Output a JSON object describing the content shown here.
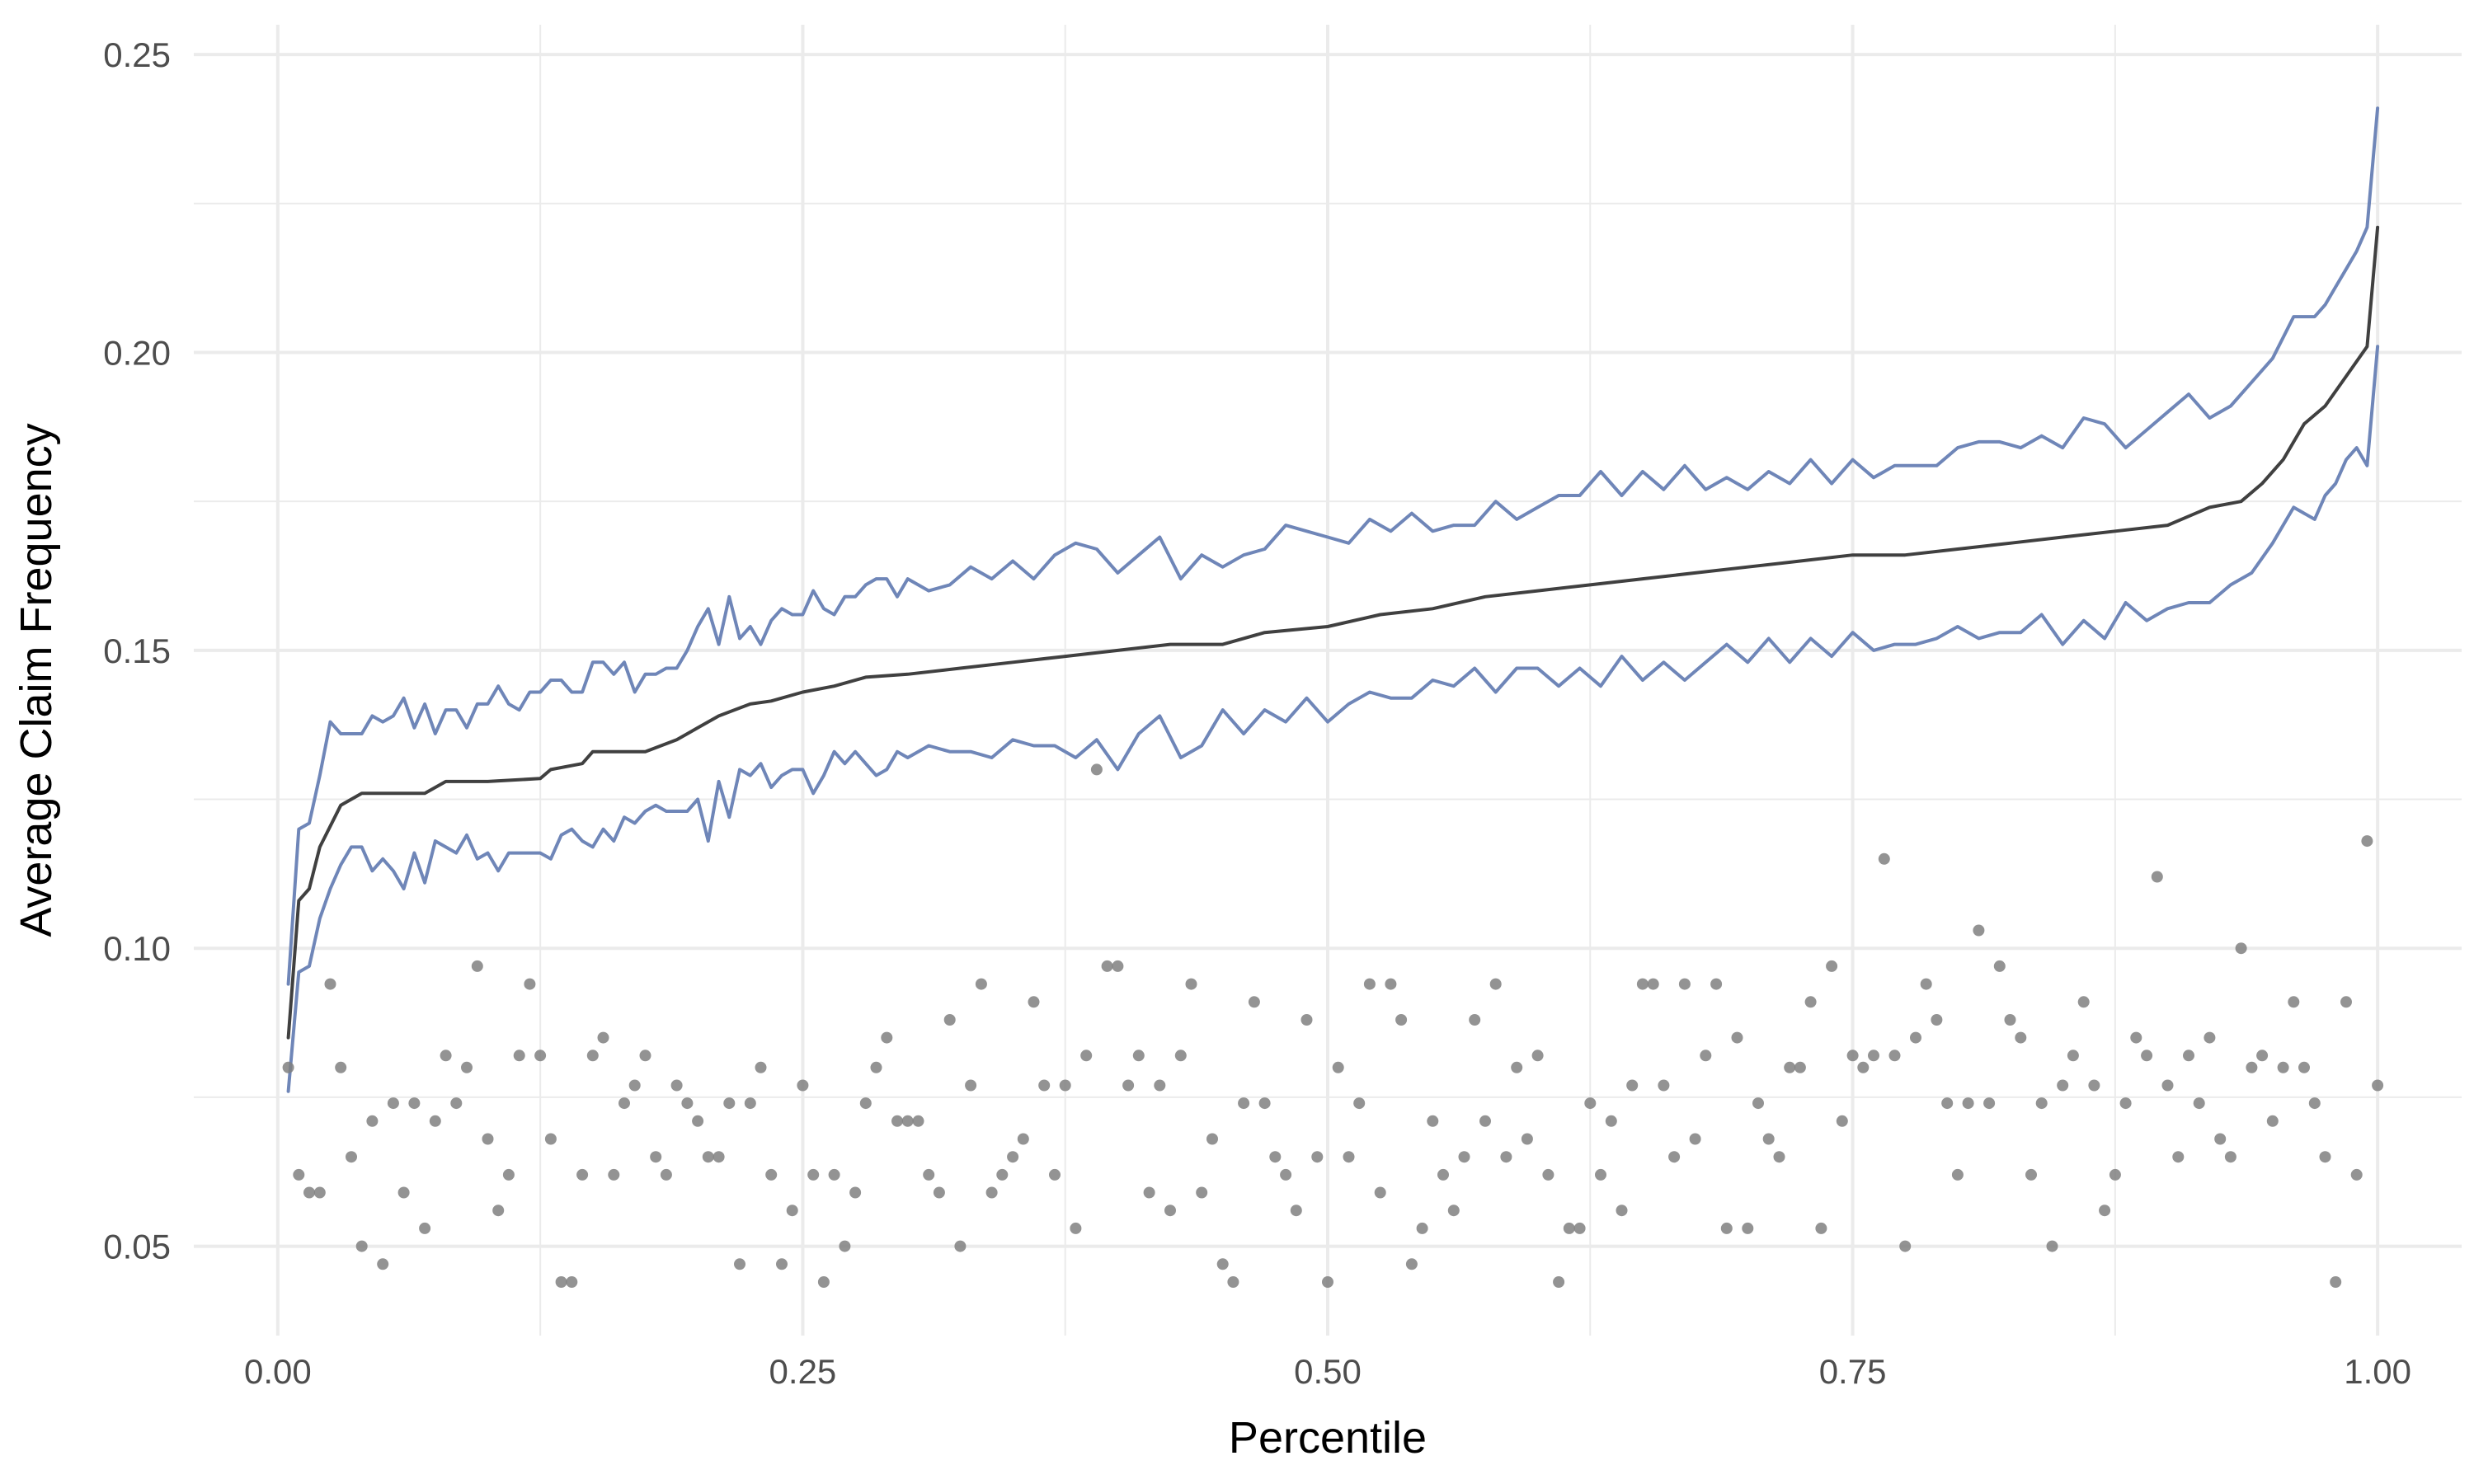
{
  "chart_data": {
    "type": "line",
    "title": "",
    "xlabel": "Percentile",
    "ylabel": "Average Claim Frequency",
    "xlim": [
      -0.04,
      1.04
    ],
    "ylim": [
      0.035,
      0.255
    ],
    "x_ticks": [
      0.0,
      0.25,
      0.5,
      0.75,
      1.0
    ],
    "x_tick_labels": [
      "0.00",
      "0.25",
      "0.50",
      "0.75",
      "1.00"
    ],
    "y_ticks": [
      0.05,
      0.1,
      0.15,
      0.2,
      0.25
    ],
    "y_tick_labels": [
      "0.05",
      "0.10",
      "0.15",
      "0.20",
      "0.25"
    ],
    "grid": true,
    "legend": "none",
    "colors": {
      "prediction": "#404040",
      "bounds": "#6f86b8",
      "points": "#808080",
      "grid": "#ebebeb"
    },
    "series": [
      {
        "kind": "line",
        "role": "prediction",
        "x": [
          0.005,
          0.01,
          0.015,
          0.02,
          0.03,
          0.04,
          0.05,
          0.07,
          0.08,
          0.1,
          0.125,
          0.13,
          0.145,
          0.15,
          0.175,
          0.19,
          0.2,
          0.21,
          0.225,
          0.235,
          0.25,
          0.265,
          0.28,
          0.3,
          0.325,
          0.35,
          0.375,
          0.4,
          0.425,
          0.45,
          0.47,
          0.5,
          0.525,
          0.55,
          0.575,
          0.6,
          0.625,
          0.65,
          0.675,
          0.7,
          0.725,
          0.75,
          0.775,
          0.8,
          0.825,
          0.85,
          0.875,
          0.9,
          0.92,
          0.935,
          0.945,
          0.955,
          0.965,
          0.975,
          0.985,
          0.995,
          1.0
        ],
        "y": [
          0.085,
          0.108,
          0.11,
          0.117,
          0.124,
          0.126,
          0.126,
          0.126,
          0.128,
          0.128,
          0.1285,
          0.13,
          0.131,
          0.133,
          0.133,
          0.135,
          0.137,
          0.139,
          0.141,
          0.1415,
          0.143,
          0.144,
          0.1455,
          0.146,
          0.147,
          0.148,
          0.149,
          0.15,
          0.151,
          0.151,
          0.153,
          0.154,
          0.156,
          0.157,
          0.159,
          0.16,
          0.161,
          0.162,
          0.163,
          0.164,
          0.165,
          0.166,
          0.166,
          0.167,
          0.168,
          0.169,
          0.17,
          0.171,
          0.174,
          0.175,
          0.178,
          0.182,
          0.188,
          0.191,
          0.196,
          0.201,
          0.221
        ]
      },
      {
        "kind": "line",
        "role": "upper-bound",
        "x": [
          0.005,
          0.01,
          0.015,
          0.02,
          0.025,
          0.03,
          0.035,
          0.04,
          0.045,
          0.05,
          0.055,
          0.06,
          0.065,
          0.07,
          0.075,
          0.08,
          0.085,
          0.09,
          0.095,
          0.1,
          0.105,
          0.11,
          0.115,
          0.12,
          0.125,
          0.13,
          0.135,
          0.14,
          0.145,
          0.15,
          0.155,
          0.16,
          0.165,
          0.17,
          0.175,
          0.18,
          0.185,
          0.19,
          0.195,
          0.2,
          0.205,
          0.21,
          0.215,
          0.22,
          0.225,
          0.23,
          0.235,
          0.24,
          0.245,
          0.25,
          0.255,
          0.26,
          0.265,
          0.27,
          0.275,
          0.28,
          0.285,
          0.29,
          0.295,
          0.3,
          0.31,
          0.32,
          0.33,
          0.34,
          0.35,
          0.36,
          0.37,
          0.38,
          0.39,
          0.4,
          0.41,
          0.42,
          0.43,
          0.44,
          0.45,
          0.46,
          0.47,
          0.48,
          0.49,
          0.5,
          0.51,
          0.52,
          0.53,
          0.54,
          0.55,
          0.56,
          0.57,
          0.58,
          0.59,
          0.6,
          0.61,
          0.62,
          0.63,
          0.64,
          0.65,
          0.66,
          0.67,
          0.68,
          0.69,
          0.7,
          0.71,
          0.72,
          0.73,
          0.74,
          0.75,
          0.76,
          0.77,
          0.78,
          0.79,
          0.8,
          0.81,
          0.82,
          0.83,
          0.84,
          0.85,
          0.86,
          0.87,
          0.88,
          0.89,
          0.9,
          0.91,
          0.92,
          0.93,
          0.94,
          0.95,
          0.96,
          0.97,
          0.975,
          0.98,
          0.985,
          0.99,
          0.995,
          1.0
        ],
        "y": [
          0.094,
          0.12,
          0.121,
          0.129,
          0.138,
          0.136,
          0.136,
          0.136,
          0.139,
          0.138,
          0.139,
          0.142,
          0.137,
          0.141,
          0.136,
          0.14,
          0.14,
          0.137,
          0.141,
          0.141,
          0.144,
          0.141,
          0.14,
          0.143,
          0.143,
          0.145,
          0.145,
          0.143,
          0.143,
          0.148,
          0.148,
          0.146,
          0.148,
          0.143,
          0.146,
          0.146,
          0.147,
          0.147,
          0.15,
          0.154,
          0.157,
          0.151,
          0.159,
          0.152,
          0.154,
          0.151,
          0.155,
          0.157,
          0.156,
          0.156,
          0.16,
          0.157,
          0.156,
          0.159,
          0.159,
          0.161,
          0.162,
          0.162,
          0.159,
          0.162,
          0.16,
          0.161,
          0.164,
          0.162,
          0.165,
          0.162,
          0.166,
          0.168,
          0.167,
          0.163,
          0.166,
          0.169,
          0.162,
          0.166,
          0.164,
          0.166,
          0.167,
          0.171,
          0.17,
          0.169,
          0.168,
          0.172,
          0.17,
          0.173,
          0.17,
          0.171,
          0.171,
          0.175,
          0.172,
          0.174,
          0.176,
          0.176,
          0.18,
          0.176,
          0.18,
          0.177,
          0.181,
          0.177,
          0.179,
          0.177,
          0.18,
          0.178,
          0.182,
          0.178,
          0.182,
          0.179,
          0.181,
          0.181,
          0.181,
          0.184,
          0.185,
          0.185,
          0.184,
          0.186,
          0.184,
          0.189,
          0.188,
          0.184,
          0.187,
          0.19,
          0.193,
          0.189,
          0.191,
          0.195,
          0.199,
          0.206,
          0.206,
          0.208,
          0.211,
          0.214,
          0.217,
          0.221,
          0.241
        ]
      },
      {
        "kind": "line",
        "role": "lower-bound",
        "x": [
          0.005,
          0.01,
          0.015,
          0.02,
          0.025,
          0.03,
          0.035,
          0.04,
          0.045,
          0.05,
          0.055,
          0.06,
          0.065,
          0.07,
          0.075,
          0.08,
          0.085,
          0.09,
          0.095,
          0.1,
          0.105,
          0.11,
          0.115,
          0.12,
          0.125,
          0.13,
          0.135,
          0.14,
          0.145,
          0.15,
          0.155,
          0.16,
          0.165,
          0.17,
          0.175,
          0.18,
          0.185,
          0.19,
          0.195,
          0.2,
          0.205,
          0.21,
          0.215,
          0.22,
          0.225,
          0.23,
          0.235,
          0.24,
          0.245,
          0.25,
          0.255,
          0.26,
          0.265,
          0.27,
          0.275,
          0.28,
          0.285,
          0.29,
          0.295,
          0.3,
          0.31,
          0.32,
          0.33,
          0.34,
          0.35,
          0.36,
          0.37,
          0.38,
          0.39,
          0.4,
          0.41,
          0.42,
          0.43,
          0.44,
          0.45,
          0.46,
          0.47,
          0.48,
          0.49,
          0.5,
          0.51,
          0.52,
          0.53,
          0.54,
          0.55,
          0.56,
          0.57,
          0.58,
          0.59,
          0.6,
          0.61,
          0.62,
          0.63,
          0.64,
          0.65,
          0.66,
          0.67,
          0.68,
          0.69,
          0.7,
          0.71,
          0.72,
          0.73,
          0.74,
          0.75,
          0.76,
          0.77,
          0.78,
          0.79,
          0.8,
          0.81,
          0.82,
          0.83,
          0.84,
          0.85,
          0.86,
          0.87,
          0.88,
          0.89,
          0.9,
          0.91,
          0.92,
          0.93,
          0.94,
          0.95,
          0.96,
          0.97,
          0.975,
          0.98,
          0.985,
          0.99,
          0.995,
          1.0
        ],
        "y": [
          0.076,
          0.096,
          0.097,
          0.105,
          0.11,
          0.114,
          0.117,
          0.117,
          0.113,
          0.115,
          0.113,
          0.11,
          0.116,
          0.111,
          0.118,
          0.117,
          0.116,
          0.119,
          0.115,
          0.116,
          0.113,
          0.116,
          0.116,
          0.116,
          0.116,
          0.115,
          0.119,
          0.12,
          0.118,
          0.117,
          0.12,
          0.118,
          0.122,
          0.121,
          0.123,
          0.124,
          0.123,
          0.123,
          0.123,
          0.125,
          0.118,
          0.128,
          0.122,
          0.13,
          0.129,
          0.131,
          0.127,
          0.129,
          0.13,
          0.13,
          0.126,
          0.129,
          0.133,
          0.131,
          0.133,
          0.131,
          0.129,
          0.13,
          0.133,
          0.132,
          0.134,
          0.133,
          0.133,
          0.132,
          0.135,
          0.134,
          0.134,
          0.132,
          0.135,
          0.13,
          0.136,
          0.139,
          0.132,
          0.134,
          0.14,
          0.136,
          0.14,
          0.138,
          0.142,
          0.138,
          0.141,
          0.143,
          0.142,
          0.142,
          0.145,
          0.144,
          0.147,
          0.143,
          0.147,
          0.147,
          0.144,
          0.147,
          0.144,
          0.149,
          0.145,
          0.148,
          0.145,
          0.148,
          0.151,
          0.148,
          0.152,
          0.148,
          0.152,
          0.149,
          0.153,
          0.15,
          0.151,
          0.151,
          0.152,
          0.154,
          0.152,
          0.153,
          0.153,
          0.156,
          0.151,
          0.155,
          0.152,
          0.158,
          0.155,
          0.157,
          0.158,
          0.158,
          0.161,
          0.163,
          0.168,
          0.174,
          0.172,
          0.176,
          0.178,
          0.182,
          0.184,
          0.181,
          0.201
        ]
      },
      {
        "kind": "scatter",
        "role": "observed",
        "x": [
          0.005,
          0.01,
          0.015,
          0.02,
          0.025,
          0.03,
          0.035,
          0.04,
          0.045,
          0.05,
          0.055,
          0.06,
          0.065,
          0.07,
          0.075,
          0.08,
          0.085,
          0.09,
          0.095,
          0.1,
          0.105,
          0.11,
          0.115,
          0.12,
          0.125,
          0.13,
          0.135,
          0.14,
          0.145,
          0.15,
          0.155,
          0.16,
          0.165,
          0.17,
          0.175,
          0.18,
          0.185,
          0.19,
          0.195,
          0.2,
          0.205,
          0.21,
          0.215,
          0.22,
          0.225,
          0.23,
          0.235,
          0.24,
          0.245,
          0.25,
          0.255,
          0.26,
          0.265,
          0.27,
          0.275,
          0.28,
          0.285,
          0.29,
          0.295,
          0.3,
          0.305,
          0.31,
          0.315,
          0.32,
          0.325,
          0.33,
          0.335,
          0.34,
          0.345,
          0.35,
          0.355,
          0.36,
          0.365,
          0.37,
          0.375,
          0.38,
          0.385,
          0.39,
          0.395,
          0.4,
          0.405,
          0.41,
          0.415,
          0.42,
          0.425,
          0.43,
          0.435,
          0.44,
          0.445,
          0.45,
          0.455,
          0.46,
          0.465,
          0.47,
          0.475,
          0.48,
          0.485,
          0.49,
          0.495,
          0.5,
          0.505,
          0.51,
          0.515,
          0.52,
          0.525,
          0.53,
          0.535,
          0.54,
          0.545,
          0.55,
          0.555,
          0.56,
          0.565,
          0.57,
          0.575,
          0.58,
          0.585,
          0.59,
          0.595,
          0.6,
          0.605,
          0.61,
          0.615,
          0.62,
          0.625,
          0.63,
          0.635,
          0.64,
          0.645,
          0.65,
          0.655,
          0.66,
          0.665,
          0.67,
          0.675,
          0.68,
          0.685,
          0.69,
          0.695,
          0.7,
          0.705,
          0.71,
          0.715,
          0.72,
          0.725,
          0.73,
          0.735,
          0.74,
          0.745,
          0.75,
          0.755,
          0.76,
          0.765,
          0.77,
          0.775,
          0.78,
          0.785,
          0.79,
          0.795,
          0.8,
          0.805,
          0.81,
          0.815,
          0.82,
          0.825,
          0.83,
          0.835,
          0.84,
          0.845,
          0.85,
          0.855,
          0.86,
          0.865,
          0.87,
          0.875,
          0.88,
          0.885,
          0.89,
          0.895,
          0.9,
          0.905,
          0.91,
          0.915,
          0.92,
          0.925,
          0.93,
          0.935,
          0.94,
          0.945,
          0.95,
          0.955,
          0.96,
          0.965,
          0.97,
          0.975,
          0.98,
          0.985,
          0.99,
          0.995,
          1.0
        ],
        "y": [
          0.08,
          0.062,
          0.059,
          0.059,
          0.094,
          0.08,
          0.065,
          0.05,
          0.071,
          0.047,
          0.074,
          0.059,
          0.074,
          0.053,
          0.071,
          0.082,
          0.074,
          0.08,
          0.097,
          0.068,
          0.056,
          0.062,
          0.082,
          0.094,
          0.082,
          0.068,
          0.044,
          0.044,
          0.062,
          0.082,
          0.085,
          0.062,
          0.074,
          0.077,
          0.082,
          0.065,
          0.062,
          0.077,
          0.074,
          0.071,
          0.065,
          0.065,
          0.074,
          0.047,
          0.074,
          0.08,
          0.062,
          0.047,
          0.056,
          0.077,
          0.062,
          0.044,
          0.062,
          0.05,
          0.059,
          0.074,
          0.08,
          0.085,
          0.071,
          0.071,
          0.071,
          0.062,
          0.059,
          0.088,
          0.05,
          0.077,
          0.094,
          0.059,
          0.062,
          0.065,
          0.068,
          0.091,
          0.077,
          0.062,
          0.077,
          0.053,
          0.082,
          0.13,
          0.097,
          0.097,
          0.077,
          0.082,
          0.059,
          0.077,
          0.056,
          0.082,
          0.094,
          0.059,
          0.068,
          0.047,
          0.044,
          0.074,
          0.091,
          0.074,
          0.065,
          0.062,
          0.056,
          0.088,
          0.065,
          0.044,
          0.08,
          0.065,
          0.074,
          0.094,
          0.059,
          0.094,
          0.088,
          0.047,
          0.053,
          0.071,
          0.062,
          0.056,
          0.065,
          0.088,
          0.071,
          0.094,
          0.065,
          0.08,
          0.068,
          0.082,
          0.062,
          0.044,
          0.053,
          0.053,
          0.074,
          0.062,
          0.071,
          0.056,
          0.077,
          0.094,
          0.094,
          0.077,
          0.065,
          0.094,
          0.068,
          0.082,
          0.094,
          0.053,
          0.085,
          0.053,
          0.074,
          0.068,
          0.065,
          0.08,
          0.08,
          0.091,
          0.053,
          0.097,
          0.071,
          0.082,
          0.08,
          0.082,
          0.115,
          0.082,
          0.05,
          0.085,
          0.094,
          0.088,
          0.074,
          0.062,
          0.074,
          0.103,
          0.074,
          0.097,
          0.088,
          0.085,
          0.062,
          0.074,
          0.05,
          0.077,
          0.082,
          0.091,
          0.077,
          0.056,
          0.062,
          0.074,
          0.085,
          0.082,
          0.112,
          0.077,
          0.065,
          0.082,
          0.074,
          0.085,
          0.068,
          0.065,
          0.1,
          0.08,
          0.082,
          0.071,
          0.08,
          0.091,
          0.08,
          0.074,
          0.065,
          0.044,
          0.091,
          0.062,
          0.118,
          0.077
        ]
      }
    ]
  }
}
